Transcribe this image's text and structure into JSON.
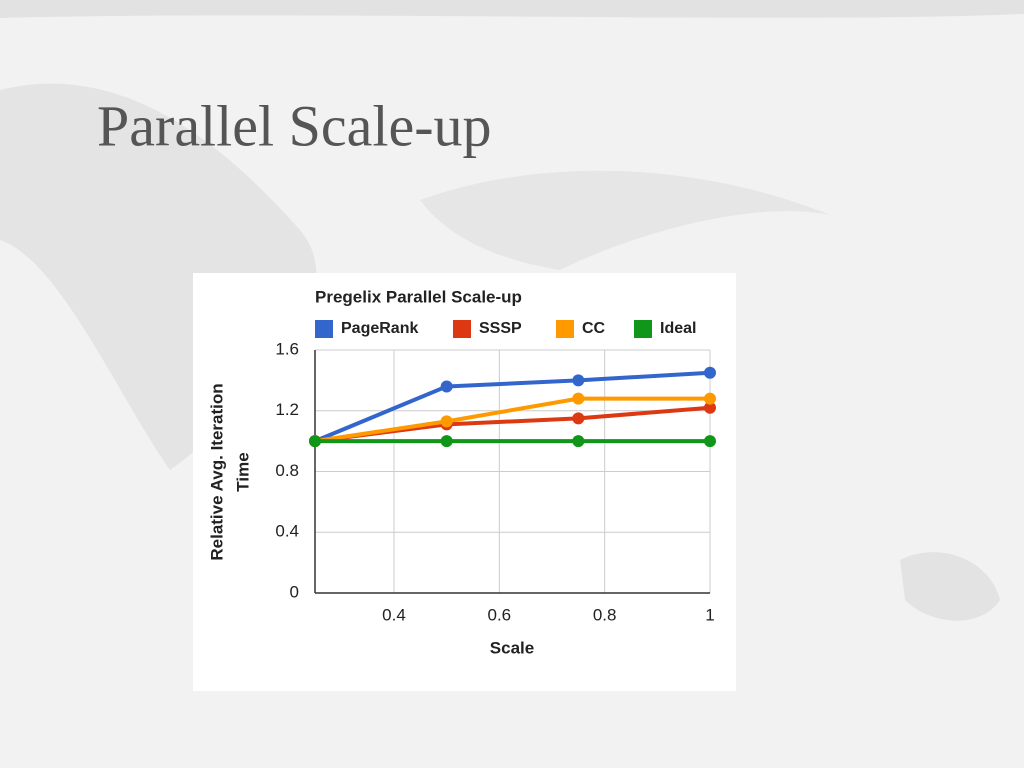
{
  "slide": {
    "title": "Parallel Scale-up"
  },
  "chart_data": {
    "type": "line",
    "title": "Pregelix Parallel Scale-up",
    "x": [
      0.25,
      0.5,
      0.75,
      1
    ],
    "series": [
      {
        "name": "PageRank",
        "color": "#3366cc",
        "values": [
          1.0,
          1.36,
          1.4,
          1.45
        ]
      },
      {
        "name": "SSSP",
        "color": "#dc3912",
        "values": [
          1.0,
          1.11,
          1.15,
          1.22
        ]
      },
      {
        "name": "CC",
        "color": "#ff9900",
        "values": [
          1.0,
          1.13,
          1.28,
          1.28
        ]
      },
      {
        "name": "Ideal",
        "color": "#109618",
        "values": [
          1,
          1,
          1,
          1
        ]
      }
    ],
    "xlim": [
      0.25,
      1
    ],
    "xticks": [
      0.4,
      0.6,
      0.8,
      1
    ],
    "ylim": [
      0,
      1.6
    ],
    "yticks": [
      0,
      0.4,
      0.8,
      1.2,
      1.6
    ],
    "x_label": "Scale",
    "y_label": [
      "Relative Avg. Iteration",
      "Time"
    ],
    "grid": true,
    "legend": "top"
  }
}
